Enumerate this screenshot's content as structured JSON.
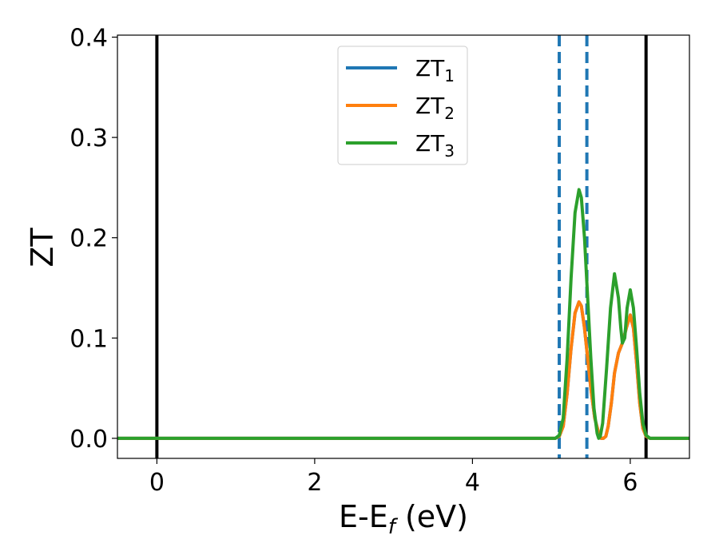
{
  "chart_data": {
    "type": "line",
    "xlabel": "E-E",
    "xlabel_sub": "f",
    "xlabel_unit": " (eV)",
    "ylabel": "ZT",
    "xlim": [
      -0.5,
      6.75
    ],
    "ylim": [
      -0.02,
      0.402
    ],
    "xticks": [
      0,
      2,
      4,
      6
    ],
    "xtick_labels": [
      "0",
      "2",
      "4",
      "6"
    ],
    "yticks": [
      0.0,
      0.1,
      0.2,
      0.3,
      0.4
    ],
    "ytick_labels": [
      "0.0",
      "0.1",
      "0.2",
      "0.3",
      "0.4"
    ],
    "grid": false,
    "legend_position": "top-center",
    "vlines": [
      {
        "x": 0.0,
        "style": "solid",
        "color": "#000000"
      },
      {
        "x": 6.2,
        "style": "solid",
        "color": "#000000"
      },
      {
        "x": 5.1,
        "style": "dashed",
        "color": "#1f77b4"
      },
      {
        "x": 5.45,
        "style": "dashed",
        "color": "#1f77b4"
      }
    ],
    "series": [
      {
        "name": "ZT",
        "subscript": "1",
        "color": "#1f77b4",
        "x": [
          -0.5,
          5.05,
          5.1,
          5.15,
          5.2,
          5.25,
          5.3,
          5.35,
          5.38,
          5.42,
          5.46,
          5.5,
          5.55,
          5.6,
          5.63,
          5.66,
          5.69,
          5.72,
          5.76,
          5.8,
          5.85,
          5.9,
          5.95,
          6.0,
          6.04,
          6.08,
          6.12,
          6.16,
          6.2,
          6.25,
          6.75
        ],
        "y": [
          0.0,
          0.0,
          0.002,
          0.012,
          0.045,
          0.09,
          0.125,
          0.136,
          0.132,
          0.11,
          0.08,
          0.05,
          0.02,
          0.005,
          0.0,
          0.0,
          0.002,
          0.012,
          0.035,
          0.065,
          0.085,
          0.095,
          0.11,
          0.123,
          0.11,
          0.075,
          0.035,
          0.01,
          0.002,
          0.0,
          0.0
        ]
      },
      {
        "name": "ZT",
        "subscript": "2",
        "color": "#ff7f0e",
        "x": [
          -0.5,
          5.05,
          5.1,
          5.15,
          5.2,
          5.25,
          5.3,
          5.35,
          5.38,
          5.42,
          5.46,
          5.5,
          5.55,
          5.6,
          5.63,
          5.66,
          5.69,
          5.72,
          5.76,
          5.8,
          5.85,
          5.9,
          5.95,
          6.0,
          6.04,
          6.08,
          6.12,
          6.16,
          6.2,
          6.25,
          6.75
        ],
        "y": [
          0.0,
          0.0,
          0.002,
          0.012,
          0.045,
          0.09,
          0.125,
          0.136,
          0.132,
          0.11,
          0.08,
          0.05,
          0.02,
          0.005,
          0.0,
          0.0,
          0.002,
          0.012,
          0.035,
          0.065,
          0.085,
          0.095,
          0.11,
          0.123,
          0.11,
          0.075,
          0.035,
          0.01,
          0.002,
          0.0,
          0.0
        ]
      },
      {
        "name": "ZT",
        "subscript": "3",
        "color": "#2ca02c",
        "x": [
          -0.5,
          5.05,
          5.1,
          5.15,
          5.2,
          5.25,
          5.3,
          5.35,
          5.38,
          5.42,
          5.46,
          5.5,
          5.54,
          5.58,
          5.6,
          5.62,
          5.65,
          5.7,
          5.75,
          5.8,
          5.85,
          5.88,
          5.9,
          5.93,
          5.96,
          6.0,
          6.04,
          6.08,
          6.12,
          6.16,
          6.2,
          6.25,
          6.75
        ],
        "y": [
          0.0,
          0.0,
          0.003,
          0.02,
          0.08,
          0.16,
          0.225,
          0.248,
          0.24,
          0.2,
          0.14,
          0.08,
          0.03,
          0.005,
          0.0,
          0.002,
          0.015,
          0.07,
          0.13,
          0.164,
          0.14,
          0.11,
          0.095,
          0.1,
          0.13,
          0.148,
          0.13,
          0.09,
          0.045,
          0.015,
          0.003,
          0.0,
          0.0
        ]
      }
    ]
  }
}
